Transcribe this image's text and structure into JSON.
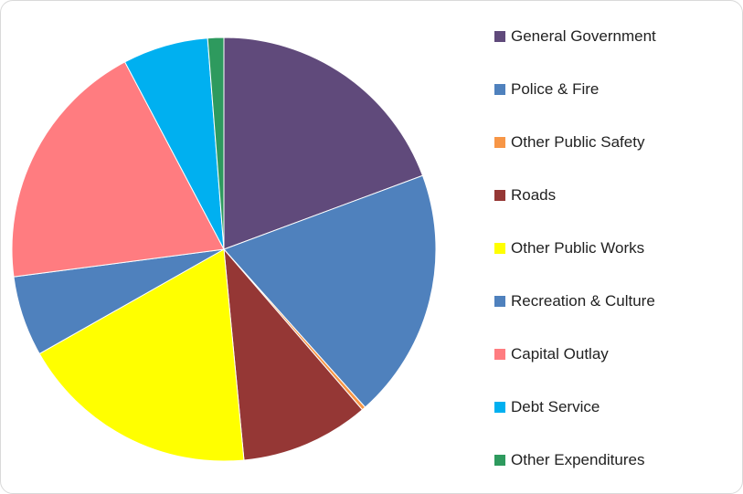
{
  "chart_data": {
    "type": "pie",
    "title": "",
    "series": [
      {
        "name": "General Government",
        "value": 20.5,
        "color": "#604A7B"
      },
      {
        "name": "Police & Fire",
        "value": 20.2,
        "color": "#4F81BD"
      },
      {
        "name": "Other Public Safety",
        "value": 0.3,
        "color": "#F79646"
      },
      {
        "name": "Roads",
        "value": 10.4,
        "color": "#953735"
      },
      {
        "name": "Other Public Works",
        "value": 19.4,
        "color": "#FFFF00"
      },
      {
        "name": "Recreation & Culture",
        "value": 6.5,
        "color": "#4F81BD"
      },
      {
        "name": "Capital Outlay",
        "value": 20.5,
        "color": "#FF7C80"
      },
      {
        "name": "Debt Service",
        "value": 6.9,
        "color": "#00B0F0"
      },
      {
        "name": "Other Expenditures",
        "value": 1.3,
        "color": "#2E9A5E"
      }
    ],
    "legend_position": "right"
  }
}
